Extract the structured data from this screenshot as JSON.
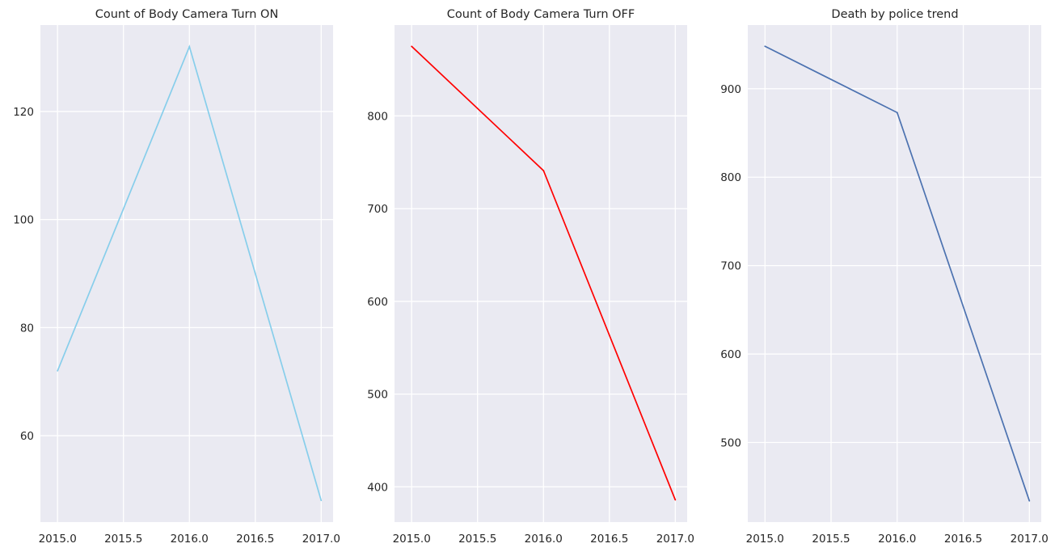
{
  "chart_data": [
    {
      "type": "line",
      "title": "Count of Body Camera Turn ON",
      "xlabel": "",
      "ylabel": "",
      "color": "#87ceeb",
      "x": [
        2015,
        2016,
        2017
      ],
      "y": [
        72,
        132,
        48
      ],
      "xlim": [
        2014.87,
        2017.09
      ],
      "ylim": [
        44,
        136
      ],
      "xticks": [
        2015.0,
        2015.5,
        2016.0,
        2016.5,
        2017.0
      ],
      "xtick_labels": [
        "2015.0",
        "2015.5",
        "2016.0",
        "2016.5",
        "2017.0"
      ],
      "yticks": [
        60,
        80,
        100,
        120
      ],
      "ytick_labels": [
        "60",
        "80",
        "100",
        "120"
      ],
      "grid": true,
      "legend": "none"
    },
    {
      "type": "line",
      "title": "Count of Body Camera Turn OFF",
      "xlabel": "",
      "ylabel": "",
      "color": "#ff0000",
      "x": [
        2015,
        2016,
        2017
      ],
      "y": [
        875,
        741,
        386
      ],
      "xlim": [
        2014.87,
        2017.09
      ],
      "ylim": [
        362,
        898
      ],
      "xticks": [
        2015.0,
        2015.5,
        2016.0,
        2016.5,
        2017.0
      ],
      "xtick_labels": [
        "2015.0",
        "2015.5",
        "2016.0",
        "2016.5",
        "2017.0"
      ],
      "yticks": [
        400,
        500,
        600,
        700,
        800
      ],
      "ytick_labels": [
        "400",
        "500",
        "600",
        "700",
        "800"
      ],
      "grid": true,
      "legend": "none"
    },
    {
      "type": "line",
      "title": "Death by police trend",
      "xlabel": "",
      "ylabel": "",
      "color": "#4c72b0",
      "x": [
        2015,
        2016,
        2017
      ],
      "y": [
        948,
        873,
        434
      ],
      "xlim": [
        2014.87,
        2017.09
      ],
      "ylim": [
        410,
        972
      ],
      "xticks": [
        2015.0,
        2015.5,
        2016.0,
        2016.5,
        2017.0
      ],
      "xtick_labels": [
        "2015.0",
        "2015.5",
        "2016.0",
        "2016.5",
        "2017.0"
      ],
      "yticks": [
        500,
        600,
        700,
        800,
        900
      ],
      "ytick_labels": [
        "500",
        "600",
        "700",
        "800",
        "900"
      ],
      "grid": true,
      "legend": "none"
    }
  ]
}
